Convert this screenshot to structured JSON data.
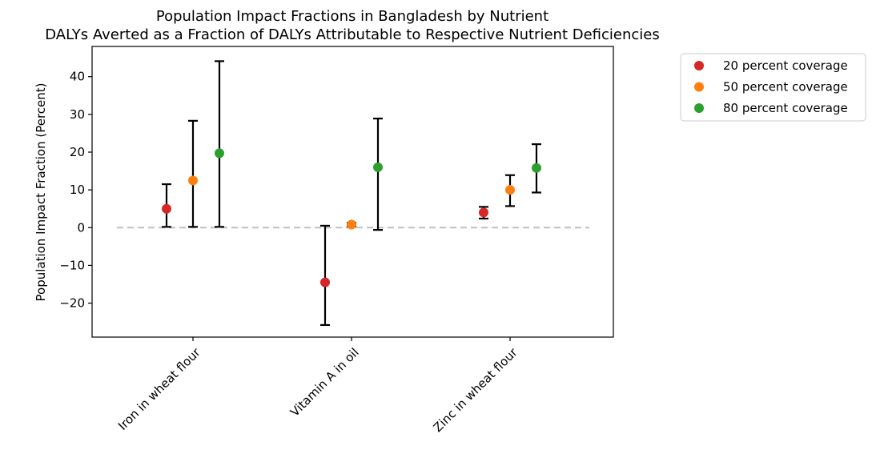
{
  "chart_data": {
    "type": "scatter",
    "title": "Population Impact Fractions in Bangladesh by Nutrient",
    "subtitle": "DALYs Averted as a Fraction of DALYs Attributable to Respective Nutrient Deficiencies",
    "xlabel": "",
    "ylabel": "Population Impact Fraction (Percent)",
    "ylim": [
      -29,
      48
    ],
    "yticks": [
      -20,
      -10,
      0,
      10,
      20,
      30,
      40
    ],
    "categories": [
      "Iron in wheat flour",
      "Vitamin A in oil",
      "Zinc in wheat flour"
    ],
    "reference_line": 0,
    "grid": false,
    "legend_position": "outside-top-right",
    "series": [
      {
        "name": "20 percent coverage",
        "color": "#d62728",
        "values": [
          5.0,
          -14.5,
          4.0
        ],
        "lower": [
          0.2,
          -25.8,
          2.4
        ],
        "upper": [
          11.5,
          0.5,
          5.5
        ]
      },
      {
        "name": "50 percent coverage",
        "color": "#ff7f0e",
        "values": [
          12.5,
          0.8,
          10.0
        ],
        "lower": [
          0.2,
          0.3,
          5.7
        ],
        "upper": [
          28.3,
          1.3,
          13.9
        ]
      },
      {
        "name": "80 percent coverage",
        "color": "#2ca02c",
        "values": [
          19.7,
          16.0,
          15.8
        ],
        "lower": [
          0.2,
          -0.6,
          9.3
        ],
        "upper": [
          44.1,
          28.9,
          22.1
        ]
      }
    ]
  }
}
